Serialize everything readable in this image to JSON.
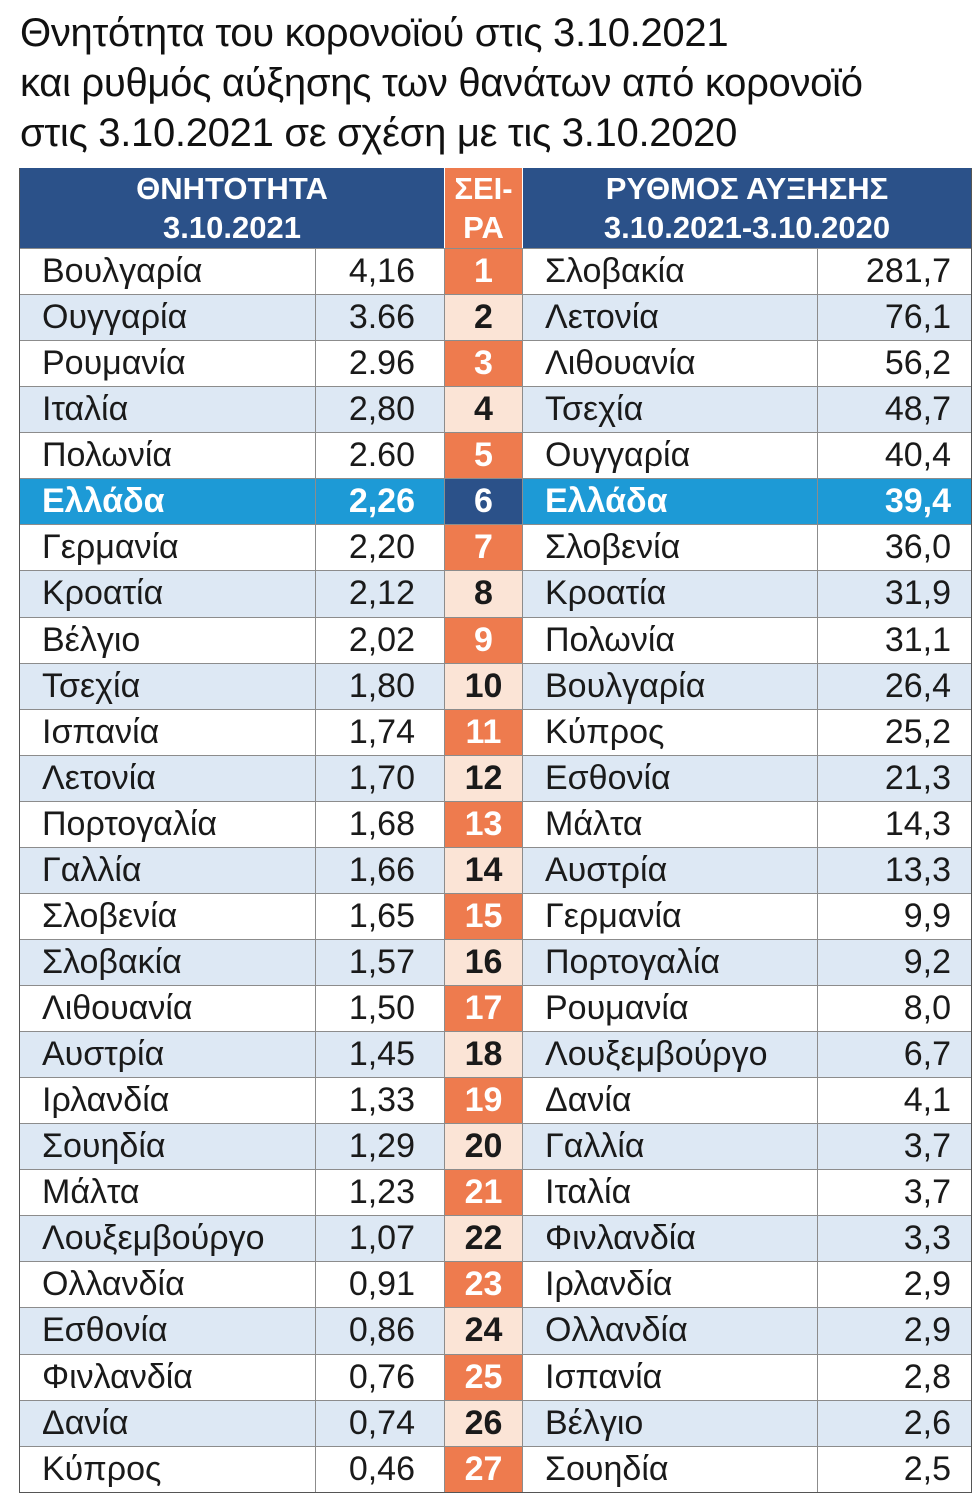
{
  "title_lines": [
    "Θνητότητα του κορονοϊού στις 3.10.2021",
    "και ρυθμός αύξησης των θανάτων από κορονοϊό",
    "στις 3.10.2021 σε σχέση με τις 3.10.2020"
  ],
  "headers": {
    "left": [
      "ΘΝΗΤΟΤΗΤΑ",
      "3.10.2021"
    ],
    "middle": [
      "ΣΕΙ-",
      "ΡΑ"
    ],
    "right": [
      "ΡΥΘΜΟΣ ΑΥΞΗΣΗΣ",
      "3.10.2021-3.10.2020"
    ]
  },
  "colors": {
    "header_blue": "#2b5189",
    "rank_orange": "#ee7b4e",
    "rank_light": "#fbe4d6",
    "row_light_blue": "#dde8f4",
    "highlight_blue": "#1d9ad6"
  },
  "highlight_rank": "6",
  "chart_data": {
    "type": "table",
    "title": "Θνητότητα του κορονοϊού στις 3.10.2021 και ρυθμός αύξησης των θανάτων από κορονοϊό στις 3.10.2021 σε σχέση με τις 3.10.2020",
    "columns": [
      "ΘΝΗΤΟΤΗΤΑ 3.10.2021",
      "",
      "ΣΕΙΡΑ",
      "ΡΥΘΜΟΣ ΑΥΞΗΣΗΣ 3.10.2021-3.10.2020",
      ""
    ],
    "rows": [
      {
        "country_left": "Βουλγαρία",
        "value_left": "4,16",
        "rank": "1",
        "country_right": "Σλοβακία",
        "value_right": "281,7"
      },
      {
        "country_left": "Ουγγαρία",
        "value_left": "3.66",
        "rank": "2",
        "country_right": "Λετονία",
        "value_right": "76,1"
      },
      {
        "country_left": "Ρουμανία",
        "value_left": "2.96",
        "rank": "3",
        "country_right": "Λιθουανία",
        "value_right": "56,2"
      },
      {
        "country_left": "Ιταλία",
        "value_left": "2,80",
        "rank": "4",
        "country_right": "Τσεχία",
        "value_right": "48,7"
      },
      {
        "country_left": "Πολωνία",
        "value_left": "2.60",
        "rank": "5",
        "country_right": "Ουγγαρία",
        "value_right": "40,4"
      },
      {
        "country_left": "Ελλάδα",
        "value_left": "2,26",
        "rank": "6",
        "country_right": "Ελλάδα",
        "value_right": "39,4"
      },
      {
        "country_left": "Γερμανία",
        "value_left": "2,20",
        "rank": "7",
        "country_right": "Σλοβενία",
        "value_right": "36,0"
      },
      {
        "country_left": "Κροατία",
        "value_left": "2,12",
        "rank": "8",
        "country_right": "Κροατία",
        "value_right": "31,9"
      },
      {
        "country_left": "Βέλγιο",
        "value_left": "2,02",
        "rank": "9",
        "country_right": "Πολωνία",
        "value_right": "31,1"
      },
      {
        "country_left": "Τσεχία",
        "value_left": "1,80",
        "rank": "10",
        "country_right": "Βουλγαρία",
        "value_right": "26,4"
      },
      {
        "country_left": "Ισπανία",
        "value_left": "1,74",
        "rank": "11",
        "country_right": "Κύπρος",
        "value_right": "25,2"
      },
      {
        "country_left": "Λετονία",
        "value_left": "1,70",
        "rank": "12",
        "country_right": "Εσθονία",
        "value_right": "21,3"
      },
      {
        "country_left": "Πορτογαλία",
        "value_left": "1,68",
        "rank": "13",
        "country_right": "Μάλτα",
        "value_right": "14,3"
      },
      {
        "country_left": "Γαλλία",
        "value_left": "1,66",
        "rank": "14",
        "country_right": "Αυστρία",
        "value_right": "13,3"
      },
      {
        "country_left": "Σλοβενία",
        "value_left": "1,65",
        "rank": "15",
        "country_right": "Γερμανία",
        "value_right": "9,9"
      },
      {
        "country_left": "Σλοβακία",
        "value_left": "1,57",
        "rank": "16",
        "country_right": "Πορτογαλία",
        "value_right": "9,2"
      },
      {
        "country_left": "Λιθουανία",
        "value_left": "1,50",
        "rank": "17",
        "country_right": "Ρουμανία",
        "value_right": "8,0"
      },
      {
        "country_left": "Αυστρία",
        "value_left": "1,45",
        "rank": "18",
        "country_right": "Λουξεμβούργο",
        "value_right": "6,7"
      },
      {
        "country_left": "Ιρλανδία",
        "value_left": "1,33",
        "rank": "19",
        "country_right": "Δανία",
        "value_right": "4,1"
      },
      {
        "country_left": "Σουηδία",
        "value_left": "1,29",
        "rank": "20",
        "country_right": "Γαλλία",
        "value_right": "3,7"
      },
      {
        "country_left": "Μάλτα",
        "value_left": "1,23",
        "rank": "21",
        "country_right": "Ιταλία",
        "value_right": "3,7"
      },
      {
        "country_left": "Λουξεμβούργο",
        "value_left": "1,07",
        "rank": "22",
        "country_right": "Φινλανδία",
        "value_right": "3,3"
      },
      {
        "country_left": "Ολλανδία",
        "value_left": "0,91",
        "rank": "23",
        "country_right": "Ιρλανδία",
        "value_right": "2,9"
      },
      {
        "country_left": "Εσθονία",
        "value_left": "0,86",
        "rank": "24",
        "country_right": "Ολλανδία",
        "value_right": "2,9"
      },
      {
        "country_left": "Φινλανδία",
        "value_left": "0,76",
        "rank": "25",
        "country_right": "Ισπανία",
        "value_right": "2,8"
      },
      {
        "country_left": "Δανία",
        "value_left": "0,74",
        "rank": "26",
        "country_right": "Βέλγιο",
        "value_right": "2,6"
      },
      {
        "country_left": "Κύπρος",
        "value_left": "0,46",
        "rank": "27",
        "country_right": "Σουηδία",
        "value_right": "2,5"
      }
    ]
  }
}
